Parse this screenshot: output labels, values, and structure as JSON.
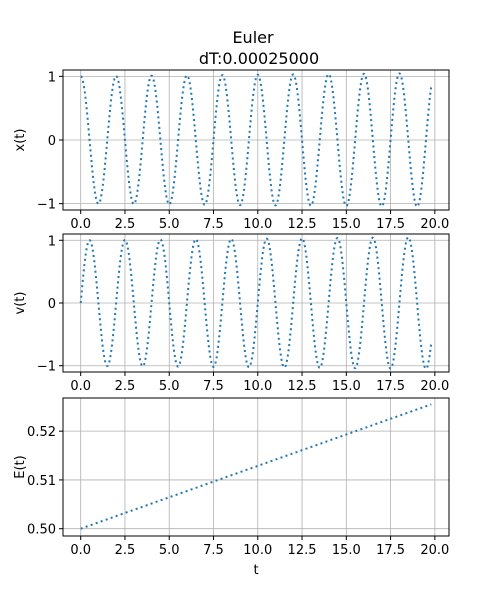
{
  "title_line1": "Euler",
  "title_line2": "dT:0.00025000",
  "xlabel": "t",
  "line_color": "#1f77b4",
  "chart_data": [
    {
      "type": "line",
      "ylabel": "x(t)",
      "function": "cos",
      "omega": 3.1416,
      "growth": 0.0025,
      "x_range": [
        0,
        19.8
      ],
      "xlim": [
        -1.0,
        20.8
      ],
      "ylim": [
        -1.1,
        1.1
      ],
      "xticks": [
        "0.0",
        "2.5",
        "5.0",
        "7.5",
        "10.0",
        "12.5",
        "15.0",
        "17.5",
        "20.0"
      ],
      "yticks": [
        "-1",
        "0",
        "1"
      ],
      "grid": true
    },
    {
      "type": "line",
      "ylabel": "v(t)",
      "function": "sin",
      "omega": 3.1416,
      "growth": 0.0025,
      "x_range": [
        0,
        19.8
      ],
      "xlim": [
        -1.0,
        20.8
      ],
      "ylim": [
        -1.1,
        1.1
      ],
      "xticks": [
        "0.0",
        "2.5",
        "5.0",
        "7.5",
        "10.0",
        "12.5",
        "15.0",
        "17.5",
        "20.0"
      ],
      "yticks": [
        "-1",
        "0",
        "1"
      ],
      "grid": true
    },
    {
      "type": "line",
      "ylabel": "E(t)",
      "function": "linear",
      "x": [
        0,
        19.8
      ],
      "y": [
        0.5,
        0.5255
      ],
      "xlim": [
        -1.0,
        20.8
      ],
      "ylim": [
        0.4985,
        0.5268
      ],
      "xticks": [
        "0.0",
        "2.5",
        "5.0",
        "7.5",
        "10.0",
        "12.5",
        "15.0",
        "17.5",
        "20.0"
      ],
      "yticks": [
        "0.50",
        "0.51",
        "0.52"
      ],
      "grid": true
    }
  ]
}
